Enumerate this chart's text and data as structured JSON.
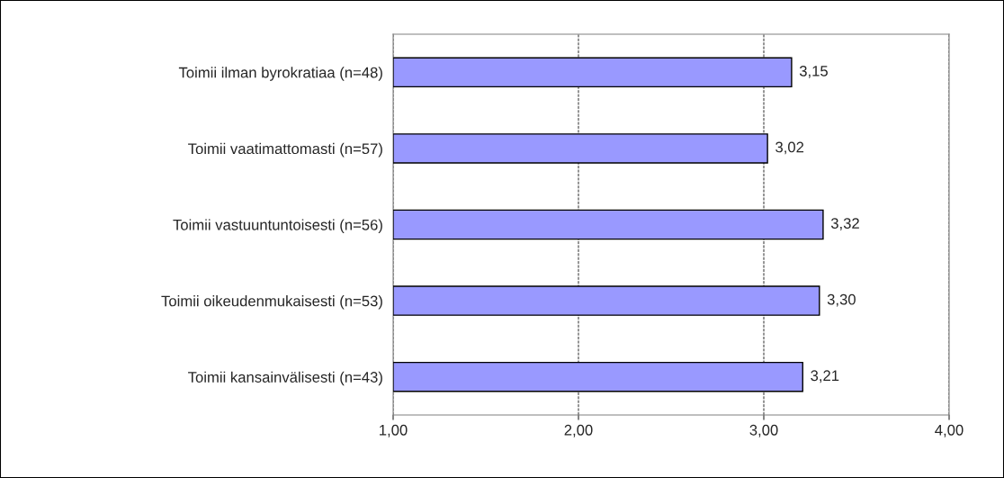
{
  "chart_data": {
    "type": "bar",
    "orientation": "horizontal",
    "categories": [
      "Toimii ilman byrokratiaa (n=48)",
      "Toimii vaatimattomasti (n=57)",
      "Toimii vastuuntuntoisesti (n=56)",
      "Toimii oikeudenmukaisesti (n=53)",
      "Toimii kansainvälisesti (n=43)"
    ],
    "values": [
      3.15,
      3.02,
      3.32,
      3.3,
      3.21
    ],
    "value_labels": [
      "3,15",
      "3,02",
      "3,32",
      "3,30",
      "3,21"
    ],
    "color": "#9999ff",
    "xlim": [
      1,
      4
    ],
    "xticks": [
      {
        "value": 1,
        "label": "1,00"
      },
      {
        "value": 2,
        "label": "2,00"
      },
      {
        "value": 3,
        "label": "3,00"
      },
      {
        "value": 4,
        "label": "4,00"
      }
    ],
    "grid": "x",
    "line_style": "dashed",
    "legend": false
  }
}
